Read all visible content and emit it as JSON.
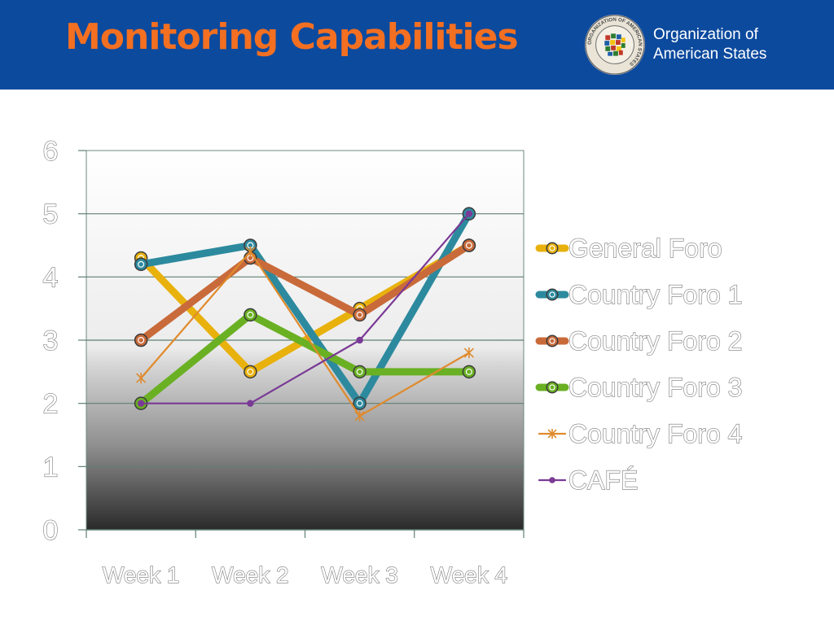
{
  "header": {
    "title": "Monitoring Capabilities",
    "org_line1": "Organization of",
    "org_line2": "American States",
    "seal_text": "ORGANIZATION OF AMERICAN STATES",
    "background": "#0c4a9e",
    "title_color": "#f36f21"
  },
  "chart_data": {
    "type": "line",
    "title": "",
    "xlabel": "",
    "ylabel": "",
    "categories": [
      "Week 1",
      "Week 2",
      "Week 3",
      "Week 4"
    ],
    "ylim": [
      0,
      6
    ],
    "yticks": [
      0,
      1,
      2,
      3,
      4,
      5,
      6
    ],
    "grid": true,
    "legend_position": "right",
    "series": [
      {
        "name": "General Foro",
        "values": [
          4.3,
          2.5,
          3.5,
          4.5
        ],
        "color": "#e8b10c",
        "marker": "circle",
        "thick": true
      },
      {
        "name": "Country Foro 1",
        "values": [
          4.2,
          4.5,
          2.0,
          5.0
        ],
        "color": "#2d8a9e",
        "marker": "circle",
        "thick": true
      },
      {
        "name": "Country Foro 2",
        "values": [
          3.0,
          4.3,
          3.4,
          4.5
        ],
        "color": "#c96a3a",
        "marker": "circle",
        "thick": true
      },
      {
        "name": "Country Foro 3",
        "values": [
          2.0,
          3.4,
          2.5,
          2.5
        ],
        "color": "#6ab023",
        "marker": "circle",
        "thick": true
      },
      {
        "name": "Country Foro 4",
        "values": [
          2.4,
          4.4,
          1.8,
          2.8
        ],
        "color": "#e08a2c",
        "marker": "star",
        "thick": false
      },
      {
        "name": "CAFÉ",
        "values": [
          2.0,
          2.0,
          3.0,
          5.0
        ],
        "color": "#7a3a96",
        "marker": "dot",
        "thick": false
      }
    ]
  }
}
